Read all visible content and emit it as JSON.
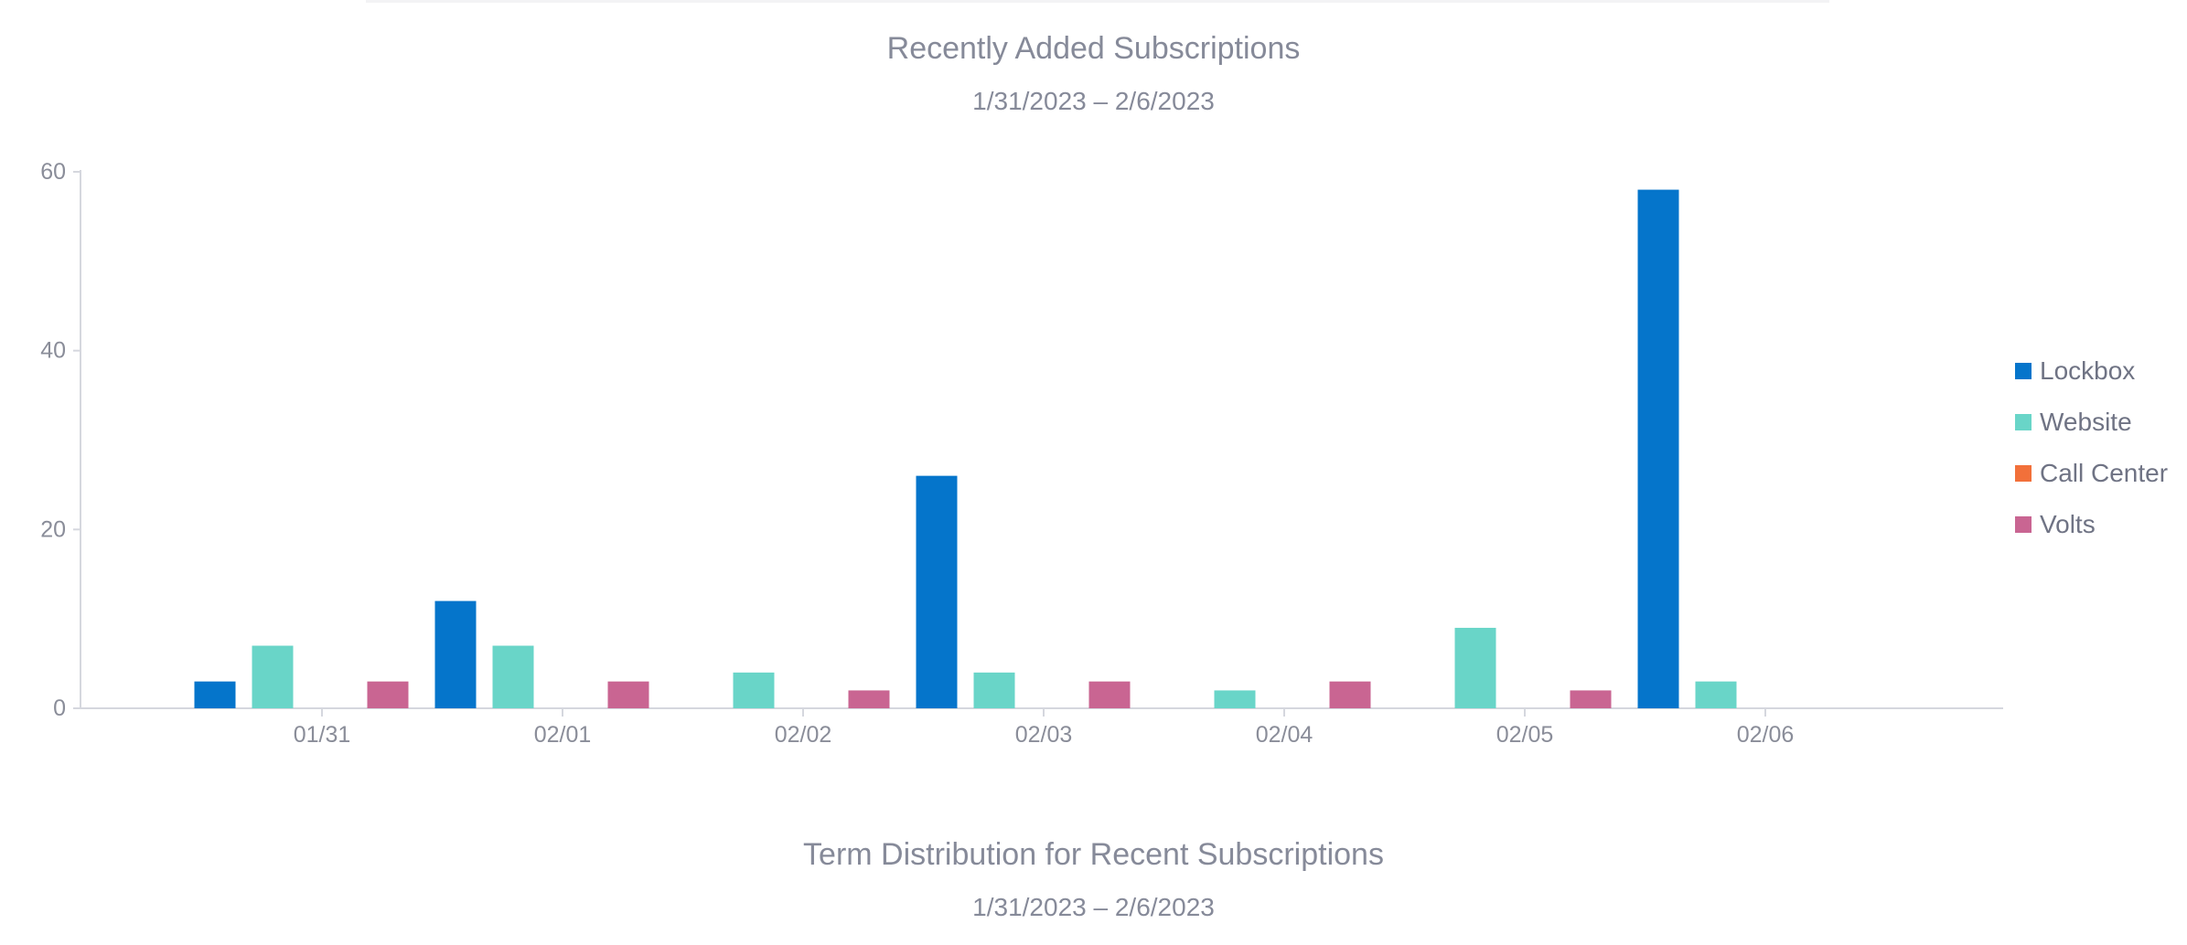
{
  "charts": {
    "subscriptions": {
      "title": "Recently Added Subscriptions",
      "subtitle": "1/31/2023 – 2/6/2023"
    },
    "term_distribution": {
      "title": "Term Distribution for Recent Subscriptions",
      "subtitle": "1/31/2023 – 2/6/2023"
    }
  },
  "chart_data": {
    "type": "bar",
    "title": "Recently Added Subscriptions",
    "subtitle": "1/31/2023 – 2/6/2023",
    "xlabel": "",
    "ylabel": "",
    "categories": [
      "01/31",
      "02/01",
      "02/02",
      "02/03",
      "02/04",
      "02/05",
      "02/06"
    ],
    "ylim": [
      0,
      60
    ],
    "yticks": [
      0,
      20,
      40,
      60
    ],
    "grid": false,
    "legend_position": "right",
    "series": [
      {
        "name": "Lockbox",
        "color": "#0575cb",
        "values": [
          3,
          12,
          0,
          26,
          0,
          0,
          58
        ]
      },
      {
        "name": "Website",
        "color": "#69d5c8",
        "values": [
          7,
          7,
          4,
          4,
          2,
          9,
          3
        ]
      },
      {
        "name": "Call Center",
        "color": "#f2703a",
        "values": [
          0,
          0,
          0,
          0,
          0,
          0,
          0
        ]
      },
      {
        "name": "Volts",
        "color": "#c96592",
        "values": [
          3,
          3,
          2,
          3,
          3,
          2,
          0
        ]
      }
    ]
  }
}
